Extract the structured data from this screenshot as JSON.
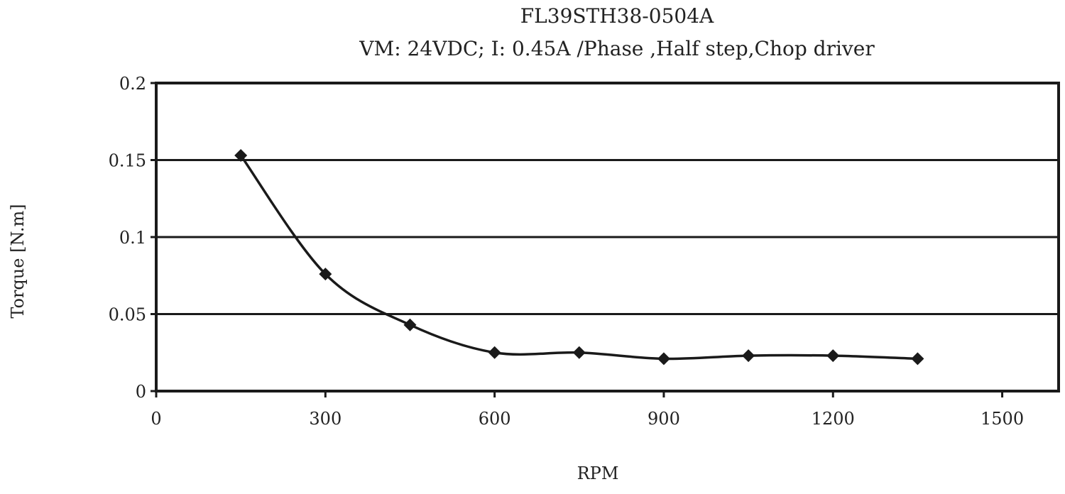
{
  "chart_data": {
    "type": "line",
    "title": "FL39STH38-0504A",
    "subtitle": "VM: 24VDC; I: 0.45A /Phase ,Half step,Chop driver",
    "xlabel": "RPM",
    "ylabel": "Torque [N.m]",
    "xlim": [
      0,
      1600
    ],
    "ylim": [
      0,
      0.2
    ],
    "x_ticks": [
      0,
      300,
      600,
      900,
      1200,
      1500
    ],
    "x_tick_labels": [
      "0",
      "300",
      "600",
      "900",
      "1200",
      "1500"
    ],
    "y_ticks": [
      0,
      0.05,
      0.1,
      0.15,
      0.2
    ],
    "y_tick_labels": [
      "0",
      "0.05",
      "0.1",
      "0.15",
      "0.2"
    ],
    "grid": "horizontal",
    "legend": "none",
    "line_color": "#1a1a1a",
    "series": [
      {
        "x": [
          150,
          300,
          450,
          600,
          750,
          900,
          1050,
          1200,
          1350
        ],
        "y": [
          0.153,
          0.076,
          0.043,
          0.025,
          0.025,
          0.021,
          0.023,
          0.023,
          0.021
        ]
      }
    ]
  }
}
